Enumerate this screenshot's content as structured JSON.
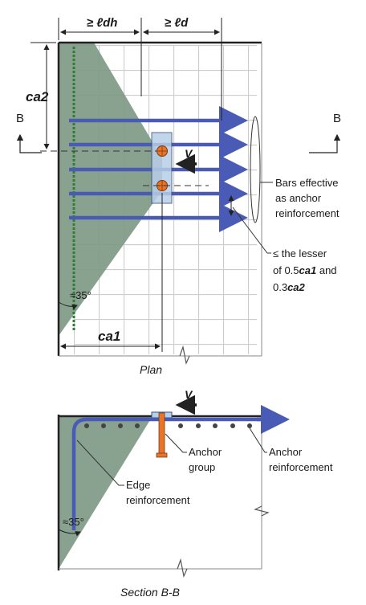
{
  "plan": {
    "dim_ldh": "≥ ℓdh",
    "dim_ld": "≥ ℓd",
    "label_ca2": "ca2",
    "label_ca1": "ca1",
    "section_mark_left": "B",
    "section_mark_right": "B",
    "load_label": "V",
    "angle_label": "≈35°",
    "bars_effective_line1": "Bars effective",
    "bars_effective_line2": "as anchor",
    "bars_effective_line3": "reinforcement",
    "spacing_line1": "≤ the lesser",
    "spacing_line2_prefix": "of 0.5",
    "spacing_line2_var": "ca1",
    "spacing_line2_suffix": " and",
    "spacing_line3_prefix": "0.3",
    "spacing_line3_var": "ca2",
    "caption": "Plan"
  },
  "section": {
    "load_label": "V",
    "angle_label": "≈35°",
    "anchor_group_line1": "Anchor",
    "anchor_group_line2": "group",
    "anchor_reinf_line1": "Anchor",
    "anchor_reinf_line2": "reinforcement",
    "edge_reinf_line1": "Edge",
    "edge_reinf_line2": "reinforcement",
    "caption": "Section B-B"
  },
  "colors": {
    "concrete_shade": "#7f9a87",
    "bar_blue": "#4a5bb5",
    "anchor_orange": "#e8742a",
    "edge_bar_green": "#2f7d32",
    "grid_gray": "#c8c8c8"
  }
}
